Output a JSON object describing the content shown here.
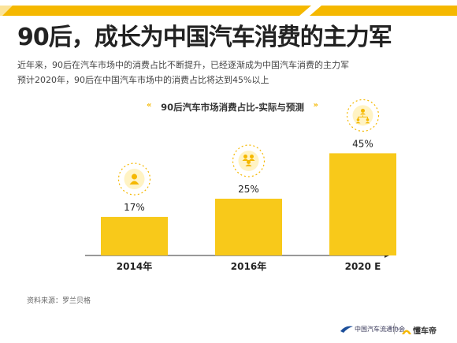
{
  "page": {
    "title": "90后，成长为中国汽车消费的主力军",
    "subtitle_line1": "近年来，90后在汽车市场中的消费占比不断提升，已经逐渐成为中国汽车消费的主力军",
    "subtitle_line2": "预计2020年，90后在中国汽车市场中的消费占比将达到45%以上",
    "source": "资料来源：罗兰贝格",
    "footer_logo_left": "中国汽车流通协会",
    "footer_logo_right": "懂车帝"
  },
  "colors": {
    "accent": "#f5b800",
    "bar": "#f8c91a",
    "icon_ring": "#f5b800"
  },
  "chart_data": {
    "type": "bar",
    "title": "90后汽车市场消费占比-实际与预测",
    "categories": [
      "2014年",
      "2016年",
      "2020 E"
    ],
    "values": [
      17,
      25,
      45
    ],
    "value_labels": [
      "17%",
      "25%",
      "45%"
    ],
    "icons": [
      "single-person-icon",
      "group-icon",
      "network-people-icon"
    ],
    "ylim": [
      0,
      50
    ],
    "grid": false,
    "legend": "none"
  }
}
